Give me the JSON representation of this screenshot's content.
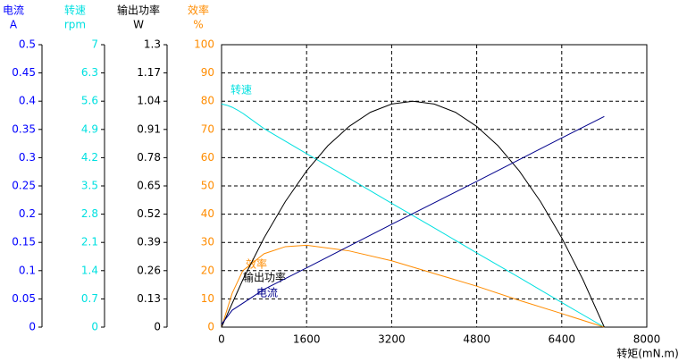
{
  "chart_data": {
    "type": "line",
    "xlabel": "转矩(mN.m)",
    "xlim": [
      0,
      8000
    ],
    "xticks": [
      0,
      1600,
      3200,
      4800,
      6400,
      8000
    ],
    "grid": true,
    "axes": [
      {
        "name": "电流",
        "unit": "A",
        "color": "#0000ff",
        "ylim": [
          0,
          0.5
        ],
        "yticks": [
          0,
          0.05,
          0.1,
          0.15,
          0.2,
          0.25,
          0.3,
          0.35,
          0.4,
          0.45,
          0.5
        ]
      },
      {
        "name": "转速",
        "unit": "rpm",
        "color": "#00e0e0",
        "ylim": [
          0,
          7
        ],
        "yticks": [
          0,
          0.7,
          1.4,
          2.1,
          2.8,
          3.5,
          4.2,
          4.9,
          5.6,
          6.3,
          7
        ]
      },
      {
        "name": "输出功率",
        "unit": "W",
        "color": "#000000",
        "ylim": [
          0,
          1.3
        ],
        "yticks": [
          0,
          0.13,
          0.26,
          0.39,
          0.52,
          0.65,
          0.78,
          0.91,
          1.04,
          1.17,
          1.3
        ]
      },
      {
        "name": "效率",
        "unit": "%",
        "color": "#ff8c00",
        "ylim": [
          0,
          100
        ],
        "yticks": [
          0,
          10,
          20,
          30,
          40,
          50,
          60,
          70,
          80,
          90,
          100
        ]
      }
    ],
    "series": [
      {
        "name": "转速",
        "color": "#00e0e0",
        "axis": 1,
        "x": [
          0,
          100,
          200,
          300,
          400,
          800,
          1600,
          2400,
          3200,
          4000,
          4800,
          5600,
          6400,
          7200
        ],
        "values": [
          5.53,
          5.5,
          5.45,
          5.38,
          5.3,
          4.92,
          4.3,
          3.69,
          3.07,
          2.46,
          1.84,
          1.23,
          0.61,
          0
        ]
      },
      {
        "name": "效率",
        "color": "#ff8c00",
        "axis": 3,
        "x": [
          0,
          200,
          400,
          800,
          1200,
          1600,
          2400,
          3200,
          4000,
          4800,
          5600,
          6400,
          7200
        ],
        "values": [
          0,
          12,
          20,
          26,
          28.5,
          29,
          27,
          23.5,
          19,
          14.5,
          9.5,
          4.8,
          0
        ]
      },
      {
        "name": "输出功率",
        "color": "#000000",
        "axis": 2,
        "x": [
          0,
          400,
          800,
          1200,
          1600,
          2000,
          2400,
          2800,
          3200,
          3600,
          4000,
          4400,
          4800,
          5200,
          5600,
          6000,
          6400,
          6800,
          7200
        ],
        "values": [
          0,
          0.218,
          0.411,
          0.578,
          0.719,
          0.835,
          0.924,
          0.989,
          1.027,
          1.04,
          1.027,
          0.989,
          0.924,
          0.835,
          0.719,
          0.578,
          0.411,
          0.218,
          0
        ]
      },
      {
        "name": "电流",
        "color": "#00008b",
        "axis": 0,
        "x": [
          0,
          200,
          800,
          1600,
          3200,
          4800,
          6400,
          7200
        ],
        "values": [
          0.005,
          0.03,
          0.067,
          0.105,
          0.182,
          0.258,
          0.335,
          0.373
        ]
      }
    ]
  }
}
